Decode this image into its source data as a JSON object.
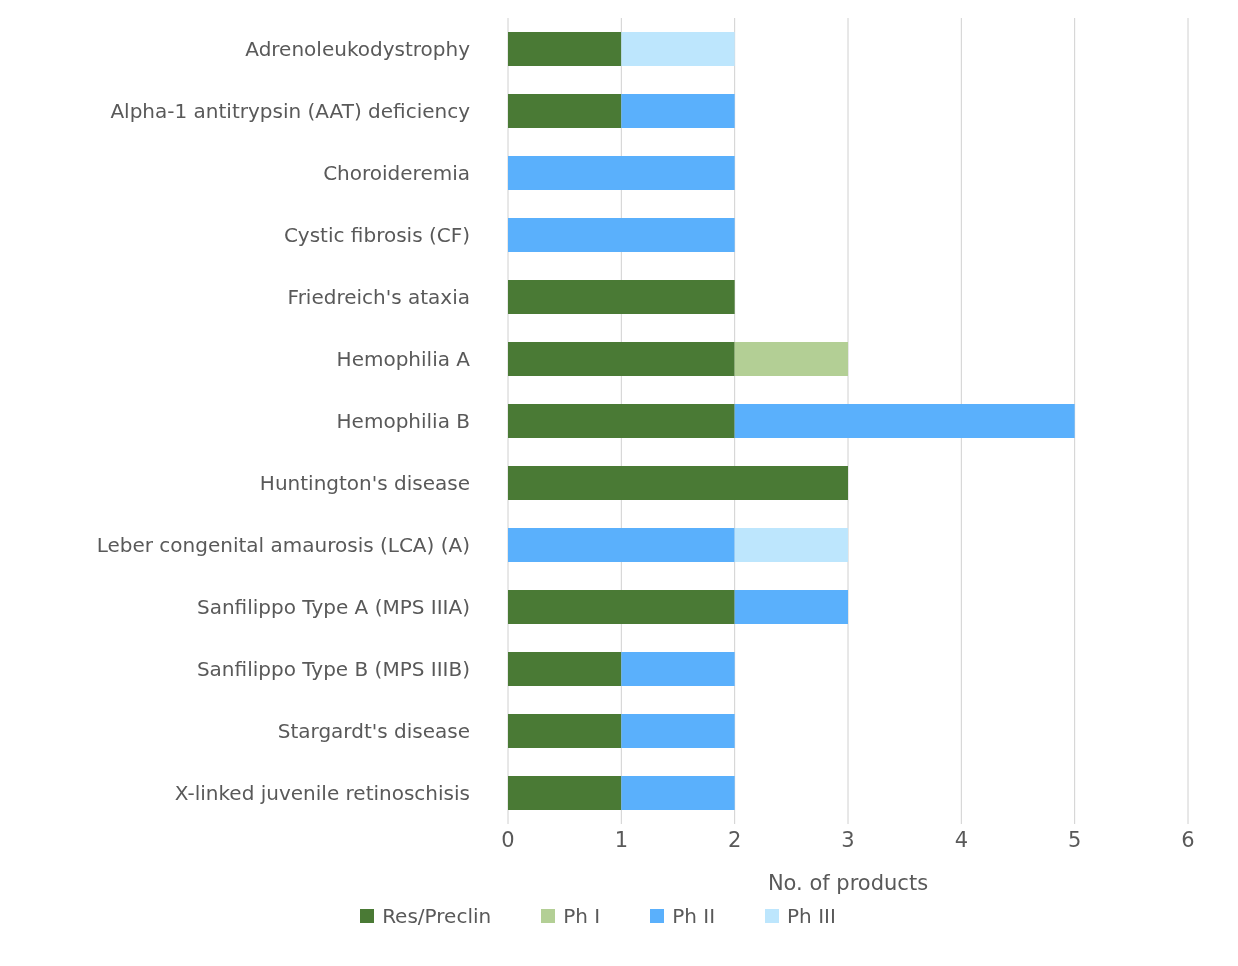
{
  "chart_data": {
    "type": "bar",
    "orientation": "horizontal",
    "stacked": true,
    "xlabel": "No. of products",
    "categories": [
      "Adrenoleukodystrophy",
      "Alpha-1 antitrypsin (AAT) deficiency",
      "Choroideremia",
      "Cystic fibrosis (CF)",
      "Friedreich's ataxia",
      "Hemophilia A",
      "Hemophilia B",
      "Huntington's disease",
      "Leber congenital amaurosis (LCA) (A)",
      "Sanfilippo Type A (MPS IIIA)",
      "Sanfilippo Type B (MPS IIIB)",
      "Stargardt's disease",
      "X-linked juvenile retinoschisis"
    ],
    "series": [
      {
        "name": "Res/Preclin",
        "color": "#4a7a35",
        "values": [
          1,
          1,
          0,
          0,
          2,
          2,
          2,
          3,
          0,
          2,
          1,
          1,
          1
        ]
      },
      {
        "name": "Ph I",
        "color": "#b3cf95",
        "values": [
          0,
          0,
          0,
          0,
          0,
          1,
          0,
          0,
          0,
          0,
          0,
          0,
          0
        ]
      },
      {
        "name": "Ph II",
        "color": "#5ab0fc",
        "values": [
          0,
          1,
          2,
          2,
          0,
          0,
          3,
          0,
          2,
          1,
          1,
          1,
          1
        ]
      },
      {
        "name": "Ph III",
        "color": "#bde6fd",
        "values": [
          1,
          0,
          0,
          0,
          0,
          0,
          0,
          0,
          1,
          0,
          0,
          0,
          0
        ]
      }
    ],
    "xlim": [
      0,
      6
    ],
    "xticks": [
      0,
      1,
      2,
      3,
      4,
      5,
      6
    ],
    "grid": "x",
    "legend": "bottom"
  }
}
